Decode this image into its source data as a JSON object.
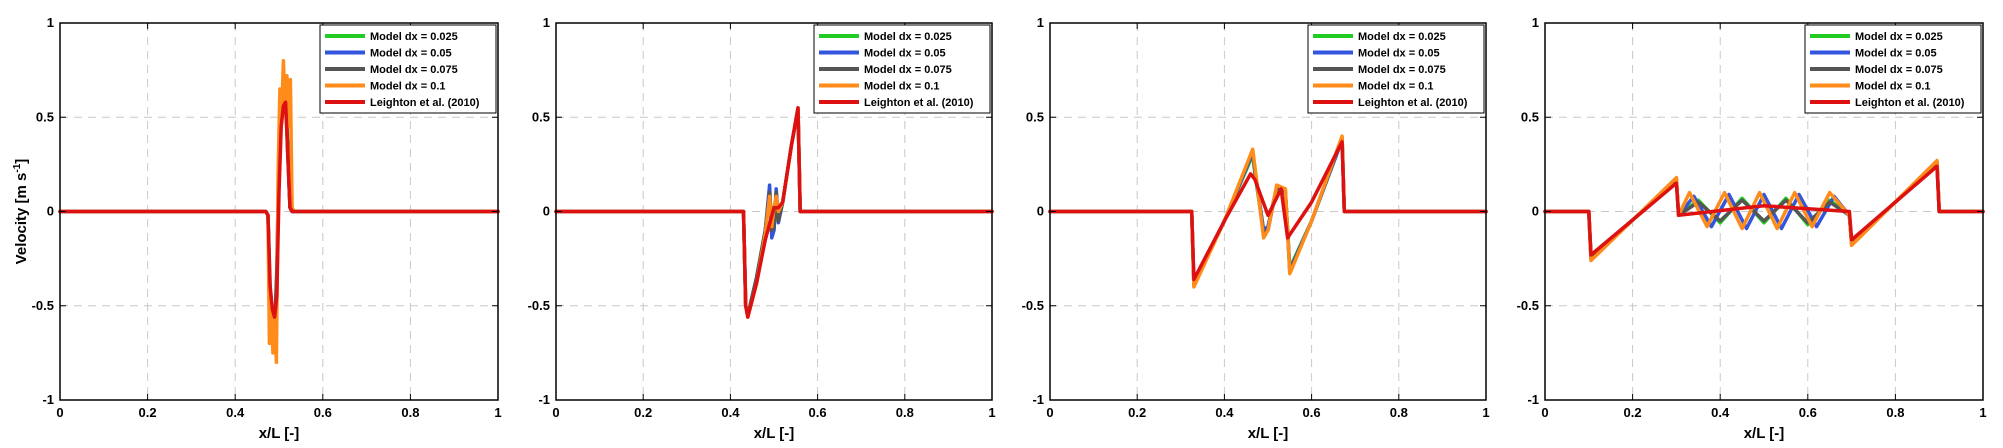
{
  "chart_data": [
    {
      "type": "line",
      "panel": 1,
      "xlabel": "x/L [-]",
      "ylabel": "Velocity [m s",
      "ylabel_sup": "-1",
      "ylabel_end": "]",
      "xlim": [
        0,
        1
      ],
      "ylim": [
        -1,
        1
      ],
      "xticks": [
        "0",
        "0.2",
        "0.4",
        "0.6",
        "0.8",
        "1"
      ],
      "yticks": [
        "-1",
        "-0.5",
        "0",
        "0.5",
        "1"
      ],
      "grid": "dashed",
      "legend": "top-right",
      "series": [
        {
          "name": "Model dx = 0.025",
          "color": "#22cc22",
          "x": [
            0,
            0.47,
            0.475,
            0.48,
            0.485,
            0.49,
            0.495,
            0.5,
            0.505,
            0.51,
            0.515,
            0.52,
            0.525,
            0.53,
            1
          ],
          "y": [
            0,
            0,
            -0.02,
            -0.45,
            -0.55,
            -0.58,
            -0.4,
            0.2,
            0.5,
            0.58,
            0.6,
            0.3,
            0.02,
            0,
            0
          ]
        },
        {
          "name": "Model dx = 0.05",
          "color": "#3355dd",
          "x": [
            0,
            0.47,
            0.475,
            0.48,
            0.485,
            0.49,
            0.495,
            0.5,
            0.505,
            0.51,
            0.515,
            0.52,
            0.525,
            0.53,
            1
          ],
          "y": [
            0,
            0,
            -0.02,
            -0.5,
            -0.6,
            -0.62,
            -0.35,
            0.25,
            0.55,
            0.62,
            0.63,
            0.3,
            0.02,
            0,
            0
          ]
        },
        {
          "name": "Model dx = 0.075",
          "color": "#555555",
          "x": [
            0,
            0.47,
            0.475,
            0.48,
            0.485,
            0.49,
            0.495,
            0.5,
            0.505,
            0.51,
            0.515,
            0.52,
            0.525,
            0.53,
            1
          ],
          "y": [
            0,
            0,
            -0.02,
            -0.55,
            -0.65,
            -0.66,
            -0.3,
            0.3,
            0.6,
            0.65,
            0.66,
            0.35,
            0.02,
            0,
            0
          ]
        },
        {
          "name": "Model dx = 0.1",
          "color": "#ff8c1a",
          "x": [
            0,
            0.47,
            0.475,
            0.478,
            0.482,
            0.486,
            0.49,
            0.494,
            0.498,
            0.502,
            0.506,
            0.51,
            0.514,
            0.518,
            0.522,
            0.526,
            0.53,
            0.535,
            1
          ],
          "y": [
            0,
            0,
            -0.02,
            -0.7,
            -0.45,
            -0.75,
            -0.55,
            -0.8,
            0.2,
            0.65,
            0.5,
            0.8,
            0.55,
            0.72,
            0.45,
            0.7,
            0.02,
            0,
            0
          ]
        },
        {
          "name": "Leighton et al. (2010)",
          "color": "#dd1111",
          "x": [
            0,
            0.47,
            0.475,
            0.48,
            0.485,
            0.49,
            0.495,
            0.5,
            0.505,
            0.51,
            0.515,
            0.52,
            0.525,
            0.53,
            1
          ],
          "y": [
            0,
            0,
            -0.02,
            -0.4,
            -0.52,
            -0.56,
            -0.45,
            0.1,
            0.45,
            0.56,
            0.58,
            0.3,
            0.02,
            0,
            0
          ]
        }
      ]
    },
    {
      "type": "line",
      "panel": 2,
      "xlabel": "x/L [-]",
      "xlim": [
        0,
        1
      ],
      "ylim": [
        -1,
        1
      ],
      "xticks": [
        "0",
        "0.2",
        "0.4",
        "0.6",
        "0.8",
        "1"
      ],
      "yticks": [
        "-1",
        "-0.5",
        "0",
        "0.5",
        "1"
      ],
      "grid": "dashed",
      "legend": "top-right",
      "series": [
        {
          "name": "Model dx = 0.025",
          "color": "#22cc22",
          "x": [
            0,
            0.43,
            0.435,
            0.44,
            0.46,
            0.48,
            0.49,
            0.495,
            0.5,
            0.505,
            0.51,
            0.52,
            0.54,
            0.555,
            0.56,
            1
          ],
          "y": [
            0,
            0,
            -0.5,
            -0.55,
            -0.35,
            -0.1,
            0.12,
            -0.12,
            -0.1,
            0.1,
            -0.05,
            0.05,
            0.35,
            0.54,
            0,
            0
          ]
        },
        {
          "name": "Model dx = 0.05",
          "color": "#3355dd",
          "x": [
            0,
            0.43,
            0.435,
            0.44,
            0.46,
            0.48,
            0.49,
            0.495,
            0.5,
            0.505,
            0.51,
            0.52,
            0.54,
            0.555,
            0.56,
            1
          ],
          "y": [
            0,
            0,
            -0.5,
            -0.55,
            -0.35,
            -0.1,
            0.14,
            -0.14,
            -0.1,
            0.12,
            -0.06,
            0.05,
            0.35,
            0.54,
            0,
            0
          ]
        },
        {
          "name": "Model dx = 0.075",
          "color": "#555555",
          "x": [
            0,
            0.43,
            0.435,
            0.44,
            0.46,
            0.48,
            0.49,
            0.495,
            0.5,
            0.505,
            0.51,
            0.52,
            0.54,
            0.555,
            0.56,
            1
          ],
          "y": [
            0,
            0,
            -0.5,
            -0.55,
            -0.35,
            -0.1,
            0.1,
            -0.1,
            -0.08,
            0.1,
            -0.05,
            0.05,
            0.35,
            0.54,
            0,
            0
          ]
        },
        {
          "name": "Model dx = 0.1",
          "color": "#ff8c1a",
          "x": [
            0,
            0.43,
            0.435,
            0.44,
            0.46,
            0.48,
            0.49,
            0.495,
            0.5,
            0.505,
            0.51,
            0.52,
            0.54,
            0.555,
            0.56,
            1
          ],
          "y": [
            0,
            0,
            -0.5,
            -0.56,
            -0.38,
            -0.12,
            0.08,
            -0.08,
            0.02,
            0.08,
            0.0,
            0.05,
            0.35,
            0.55,
            0,
            0
          ]
        },
        {
          "name": "Leighton et al. (2010)",
          "color": "#dd1111",
          "x": [
            0,
            0.43,
            0.435,
            0.44,
            0.46,
            0.48,
            0.5,
            0.51,
            0.52,
            0.54,
            0.555,
            0.56,
            1
          ],
          "y": [
            0,
            0,
            -0.5,
            -0.56,
            -0.38,
            -0.15,
            0.02,
            0.02,
            0.05,
            0.35,
            0.55,
            0,
            0
          ]
        }
      ]
    },
    {
      "type": "line",
      "panel": 3,
      "xlabel": "x/L [-]",
      "xlim": [
        0,
        1
      ],
      "ylim": [
        -1,
        1
      ],
      "xticks": [
        "0",
        "0.2",
        "0.4",
        "0.6",
        "0.8",
        "1"
      ],
      "yticks": [
        "-1",
        "-0.5",
        "0",
        "0.5",
        "1"
      ],
      "grid": "dashed",
      "legend": "top-right",
      "series": [
        {
          "name": "Model dx = 0.025",
          "color": "#22cc22",
          "x": [
            0,
            0.325,
            0.33,
            0.4,
            0.465,
            0.47,
            0.49,
            0.5,
            0.52,
            0.54,
            0.55,
            0.6,
            0.67,
            0.675,
            1
          ],
          "y": [
            0,
            0,
            -0.38,
            -0.05,
            0.3,
            0.2,
            -0.1,
            -0.08,
            0.12,
            0.1,
            -0.3,
            -0.05,
            0.38,
            0,
            0
          ]
        },
        {
          "name": "Model dx = 0.05",
          "color": "#3355dd",
          "x": [
            0,
            0.325,
            0.33,
            0.4,
            0.465,
            0.47,
            0.49,
            0.5,
            0.52,
            0.54,
            0.55,
            0.6,
            0.67,
            0.675,
            1
          ],
          "y": [
            0,
            0,
            -0.38,
            -0.05,
            0.31,
            0.22,
            -0.1,
            -0.08,
            0.13,
            0.1,
            -0.31,
            -0.05,
            0.38,
            0,
            0
          ]
        },
        {
          "name": "Model dx = 0.075",
          "color": "#555555",
          "x": [
            0,
            0.325,
            0.33,
            0.4,
            0.465,
            0.47,
            0.49,
            0.5,
            0.52,
            0.54,
            0.55,
            0.6,
            0.67,
            0.675,
            1
          ],
          "y": [
            0,
            0,
            -0.39,
            -0.05,
            0.32,
            0.22,
            -0.12,
            -0.1,
            0.13,
            0.11,
            -0.32,
            -0.05,
            0.39,
            0,
            0
          ]
        },
        {
          "name": "Model dx = 0.1",
          "color": "#ff8c1a",
          "x": [
            0,
            0.325,
            0.33,
            0.4,
            0.465,
            0.47,
            0.49,
            0.5,
            0.52,
            0.54,
            0.55,
            0.6,
            0.67,
            0.675,
            1
          ],
          "y": [
            0,
            0,
            -0.4,
            -0.05,
            0.33,
            0.24,
            -0.14,
            -0.1,
            0.14,
            0.12,
            -0.33,
            -0.05,
            0.4,
            0,
            0
          ]
        },
        {
          "name": "Leighton et al. (2010)",
          "color": "#dd1111",
          "x": [
            0,
            0.325,
            0.33,
            0.4,
            0.46,
            0.47,
            0.5,
            0.53,
            0.545,
            0.6,
            0.67,
            0.675,
            1
          ],
          "y": [
            0,
            0,
            -0.36,
            -0.05,
            0.2,
            0.17,
            -0.02,
            0.12,
            -0.14,
            0.05,
            0.37,
            0,
            0
          ]
        }
      ]
    },
    {
      "type": "line",
      "panel": 4,
      "xlabel": "x/L [-]",
      "xlim": [
        0,
        1
      ],
      "ylim": [
        -1,
        1
      ],
      "xticks": [
        "0",
        "0.2",
        "0.4",
        "0.6",
        "0.8",
        "1"
      ],
      "yticks": [
        "-1",
        "-0.5",
        "0",
        "0.5",
        "1"
      ],
      "grid": "dashed",
      "legend": "top-right",
      "series": [
        {
          "name": "Model dx = 0.025",
          "color": "#22cc22",
          "x": [
            0,
            0.1,
            0.105,
            0.3,
            0.305,
            0.35,
            0.4,
            0.45,
            0.5,
            0.55,
            0.6,
            0.65,
            0.695,
            0.7,
            0.895,
            0.9,
            1
          ],
          "y": [
            0,
            0,
            -0.24,
            0.16,
            -0.02,
            0.06,
            -0.06,
            0.07,
            -0.06,
            0.07,
            -0.07,
            0.06,
            -0.02,
            -0.16,
            0.25,
            0,
            0
          ]
        },
        {
          "name": "Model dx = 0.05",
          "color": "#3355dd",
          "x": [
            0,
            0.1,
            0.105,
            0.3,
            0.305,
            0.34,
            0.38,
            0.42,
            0.46,
            0.5,
            0.54,
            0.58,
            0.62,
            0.66,
            0.695,
            0.7,
            0.895,
            0.9,
            1
          ],
          "y": [
            0,
            0,
            -0.25,
            0.17,
            -0.02,
            0.08,
            -0.08,
            0.09,
            -0.09,
            0.09,
            -0.09,
            0.09,
            -0.08,
            0.08,
            -0.02,
            -0.17,
            0.26,
            0,
            0
          ]
        },
        {
          "name": "Model dx = 0.075",
          "color": "#555555",
          "x": [
            0,
            0.1,
            0.105,
            0.3,
            0.305,
            0.35,
            0.4,
            0.45,
            0.5,
            0.55,
            0.6,
            0.65,
            0.695,
            0.7,
            0.895,
            0.9,
            1
          ],
          "y": [
            0,
            0,
            -0.25,
            0.17,
            -0.02,
            0.05,
            -0.05,
            0.06,
            -0.05,
            0.06,
            -0.06,
            0.05,
            -0.02,
            -0.17,
            0.26,
            0,
            0
          ]
        },
        {
          "name": "Model dx = 0.1",
          "color": "#ff8c1a",
          "x": [
            0,
            0.1,
            0.105,
            0.3,
            0.305,
            0.33,
            0.37,
            0.41,
            0.45,
            0.49,
            0.53,
            0.57,
            0.61,
            0.65,
            0.695,
            0.7,
            0.895,
            0.9,
            1
          ],
          "y": [
            0,
            0,
            -0.26,
            0.18,
            -0.02,
            0.1,
            -0.08,
            0.1,
            -0.09,
            0.1,
            -0.09,
            0.1,
            -0.08,
            0.1,
            -0.02,
            -0.18,
            0.27,
            0,
            0
          ]
        },
        {
          "name": "Leighton et al. (2010)",
          "color": "#dd1111",
          "x": [
            0,
            0.1,
            0.105,
            0.3,
            0.305,
            0.5,
            0.695,
            0.7,
            0.895,
            0.9,
            1
          ],
          "y": [
            0,
            0,
            -0.23,
            0.15,
            -0.02,
            0.03,
            0.0,
            -0.15,
            0.24,
            0,
            0
          ]
        }
      ]
    }
  ]
}
